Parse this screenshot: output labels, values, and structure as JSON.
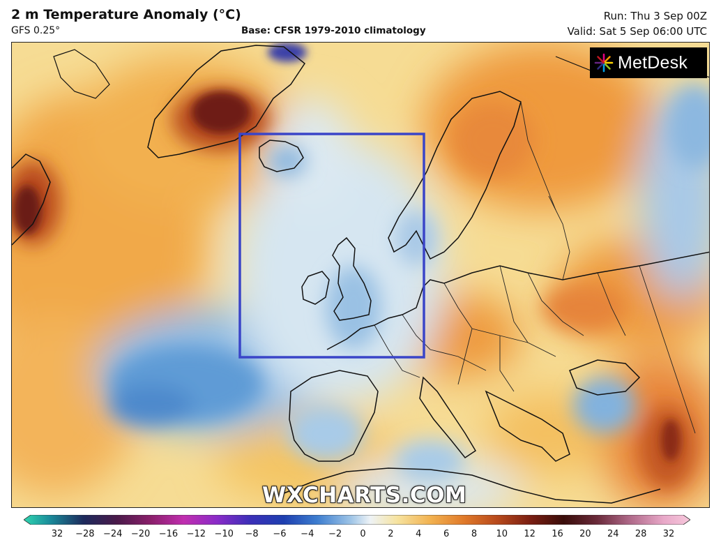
{
  "header": {
    "title": "2 m Temperature Anomaly (°C)",
    "model": "GFS 0.25°",
    "base": "Base: CFSR 1979-2010 climatology",
    "run": "Run: Thu 3 Sep 00Z",
    "valid": "Valid: Sat 5 Sep 06:00 UTC"
  },
  "branding": {
    "logo": "MetDesk",
    "watermark": "WXCHARTS.COM"
  },
  "colors": {
    "very_cold": "#3b3fa8",
    "cold": "#5f9bd6",
    "cool": "#c5def0",
    "neutral": "#eef3f6",
    "warm_light": "#f6e3a0",
    "warm": "#f2b250",
    "hot": "#e07a2a",
    "very_hot": "#a83a1a",
    "extreme": "#5a1410",
    "highlight_box": "#3a45c8"
  },
  "legend": {
    "unit": "°C",
    "ticks": [
      "32",
      "−28",
      "−24",
      "−20",
      "−16",
      "−12",
      "−10",
      "−8",
      "−6",
      "−4",
      "−2",
      "0",
      "2",
      "4",
      "6",
      "8",
      "10",
      "12",
      "16",
      "20",
      "24",
      "28",
      "32"
    ]
  }
}
